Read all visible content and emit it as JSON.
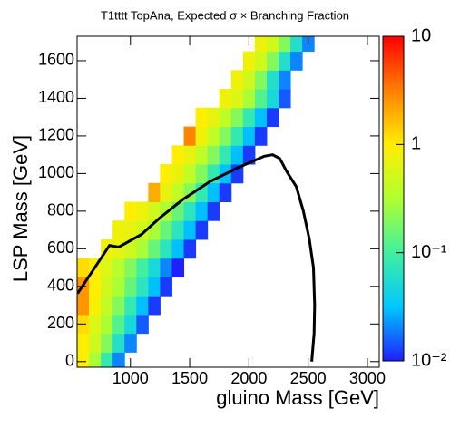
{
  "chart_data": {
    "type": "heatmap",
    "title": "T1tttt TopAna, Expected σ × Branching Fraction",
    "x_label": "gluino Mass [GeV]",
    "y_label": "LSP Mass [GeV]",
    "xlim": [
      550,
      3100
    ],
    "ylim": [
      -30,
      1730
    ],
    "xticks": [
      1000,
      1500,
      2000,
      2500,
      3000
    ],
    "yticks": [
      0,
      200,
      400,
      600,
      800,
      1000,
      1200,
      1400,
      1600
    ],
    "cell_size": [
      100,
      100
    ],
    "zlim": [
      0.01,
      10
    ],
    "zlog": true,
    "zticks": [
      {
        "value": 0.01,
        "label": "10⁻²"
      },
      {
        "value": 0.1,
        "label": "10⁻¹"
      },
      1,
      10
    ],
    "palette": [
      "#1f1fff",
      "#00c8ff",
      "#40f0a0",
      "#b0ff30",
      "#ffee00",
      "#ff8000",
      "#ff0000"
    ],
    "rows": [
      {
        "y": 0,
        "x": [
          600,
          700,
          800,
          900
        ],
        "z": [
          1,
          0.3,
          0.08,
          0.02
        ]
      },
      {
        "y": 100,
        "x": [
          600,
          700,
          800,
          900,
          1000
        ],
        "z": [
          1,
          0.5,
          0.2,
          0.06,
          0.02
        ]
      },
      {
        "y": 200,
        "x": [
          600,
          700,
          800,
          900,
          1000,
          1100
        ],
        "z": [
          1.2,
          0.6,
          0.3,
          0.12,
          0.05,
          0.015
        ]
      },
      {
        "y": 300,
        "x": [
          600,
          700,
          800,
          900,
          1000,
          1100,
          1200
        ],
        "z": [
          2.5,
          0.9,
          0.4,
          0.2,
          0.08,
          0.03,
          0.012
        ]
      },
      {
        "y": 400,
        "x": [
          600,
          700,
          800,
          900,
          1000,
          1100,
          1200,
          1300
        ],
        "z": [
          2.5,
          1,
          0.5,
          0.3,
          0.15,
          0.07,
          0.03,
          0.012
        ]
      },
      {
        "y": 500,
        "x": [
          600,
          700,
          800,
          900,
          1000,
          1100,
          1200,
          1300,
          1400
        ],
        "z": [
          1.2,
          0.9,
          0.6,
          0.35,
          0.2,
          0.1,
          0.05,
          0.02,
          0.01
        ]
      },
      {
        "y": 600,
        "x": [
          800,
          900,
          1000,
          1100,
          1200,
          1300,
          1400,
          1500
        ],
        "z": [
          0.8,
          0.7,
          0.5,
          0.3,
          0.15,
          0.07,
          0.03,
          0.012
        ]
      },
      {
        "y": 700,
        "x": [
          900,
          1000,
          1100,
          1200,
          1300,
          1400,
          1500,
          1600
        ],
        "z": [
          0.8,
          0.7,
          0.5,
          0.3,
          0.15,
          0.07,
          0.03,
          0.012
        ]
      },
      {
        "y": 800,
        "x": [
          1000,
          1100,
          1200,
          1300,
          1400,
          1500,
          1600,
          1700
        ],
        "z": [
          1,
          0.8,
          0.5,
          0.3,
          0.15,
          0.07,
          0.03,
          0.012
        ]
      },
      {
        "y": 900,
        "x": [
          1200,
          1300,
          1400,
          1500,
          1600,
          1700,
          1800
        ],
        "z": [
          2,
          0.7,
          0.4,
          0.2,
          0.08,
          0.03,
          0.012
        ]
      },
      {
        "y": 1000,
        "x": [
          1300,
          1400,
          1500,
          1600,
          1700,
          1800,
          1900
        ],
        "z": [
          1,
          0.7,
          0.4,
          0.2,
          0.08,
          0.03,
          0.012
        ]
      },
      {
        "y": 1100,
        "x": [
          1400,
          1500,
          1600,
          1700,
          1800,
          1900,
          2000
        ],
        "z": [
          1,
          0.7,
          0.4,
          0.2,
          0.08,
          0.03,
          0.012
        ]
      },
      {
        "y": 1200,
        "x": [
          1500,
          1600,
          1700,
          1800,
          1900,
          2000,
          2100
        ],
        "z": [
          3,
          0.8,
          0.4,
          0.2,
          0.08,
          0.03,
          0.012
        ]
      },
      {
        "y": 1300,
        "x": [
          1600,
          1700,
          1800,
          1900,
          2000,
          2100,
          2200
        ],
        "z": [
          1,
          0.7,
          0.4,
          0.2,
          0.08,
          0.03,
          0.012
        ]
      },
      {
        "y": 1400,
        "x": [
          1800,
          1900,
          2000,
          2100,
          2200,
          2300
        ],
        "z": [
          0.8,
          0.6,
          0.3,
          0.12,
          0.05,
          0.015
        ]
      },
      {
        "y": 1500,
        "x": [
          1900,
          2000,
          2100,
          2200,
          2300
        ],
        "z": [
          0.8,
          0.5,
          0.2,
          0.06,
          0.02
        ]
      },
      {
        "y": 1600,
        "x": [
          2000,
          2100,
          2200,
          2300,
          2400
        ],
        "z": [
          0.8,
          0.5,
          0.2,
          0.06,
          0.02
        ]
      },
      {
        "y": 1700,
        "x": [
          2100,
          2200,
          2300,
          2400,
          2500
        ],
        "z": [
          0.8,
          0.5,
          0.2,
          0.06,
          0.02
        ]
      }
    ],
    "contour": {
      "color": "#000000",
      "x": [
        554,
        823,
        900,
        1092,
        1246,
        1438,
        1670,
        1900,
        2130,
        2200,
        2260,
        2320,
        2400,
        2460,
        2510,
        2545,
        2555,
        2550,
        2530
      ],
      "y": [
        362,
        618,
        609,
        676,
        763,
        860,
        957,
        1029,
        1092,
        1100,
        1080,
        1010,
        930,
        800,
        650,
        500,
        300,
        150,
        0
      ]
    }
  }
}
